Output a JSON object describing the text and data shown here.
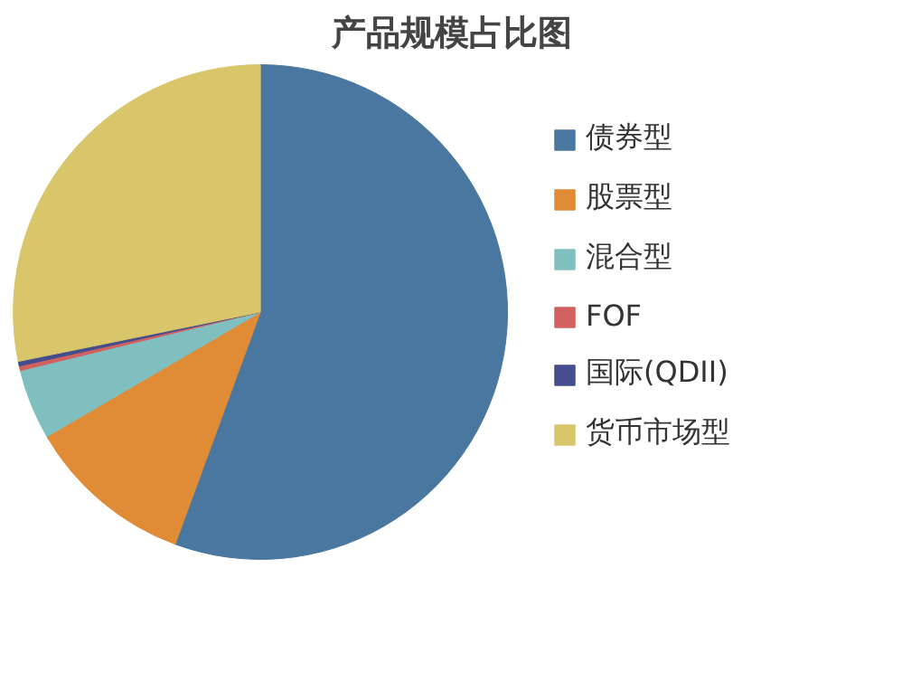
{
  "chart_data": {
    "type": "pie",
    "title": "产品规模占比图",
    "categories": [
      "债券型",
      "股票型",
      "混合型",
      "FOF",
      "国际(QDII)",
      "货币市场型"
    ],
    "values": [
      55.6,
      11.0,
      4.6,
      0.3,
      0.3,
      28.2
    ],
    "colors": [
      "#4a77a0",
      "#e08b35",
      "#7fbfc0",
      "#d2605f",
      "#454d8e",
      "#d9c56a"
    ],
    "legend": "right"
  }
}
